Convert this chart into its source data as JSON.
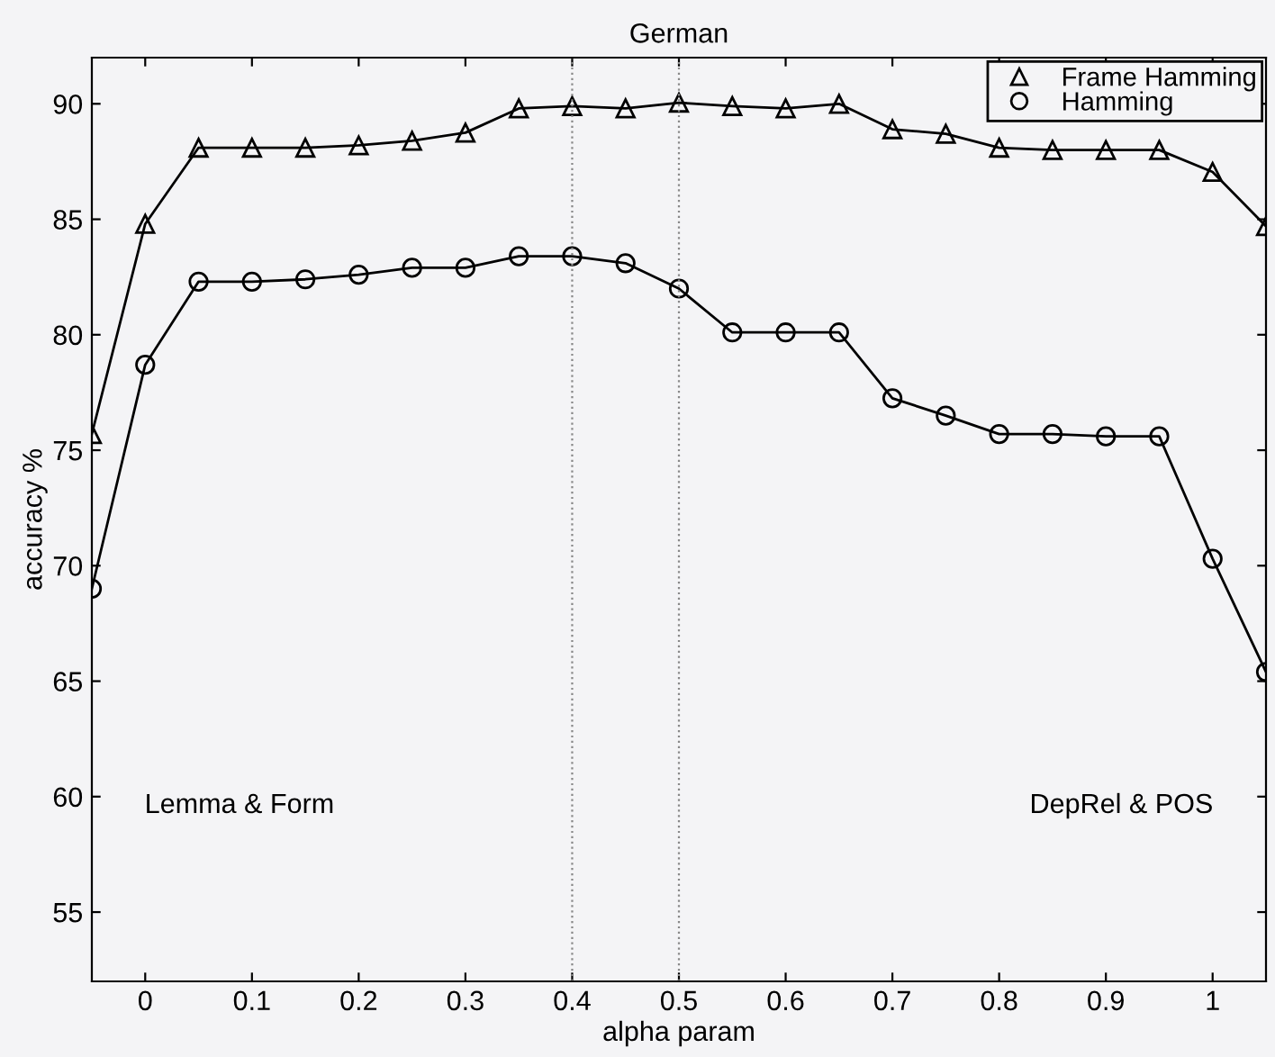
{
  "chart_data": {
    "type": "line",
    "title": "German",
    "xlabel": "alpha param",
    "ylabel": "accuracy %",
    "x": [
      -0.05,
      0,
      0.05,
      0.1,
      0.15,
      0.2,
      0.25,
      0.3,
      0.35,
      0.4,
      0.45,
      0.5,
      0.55,
      0.6,
      0.65,
      0.7,
      0.75,
      0.8,
      0.85,
      0.9,
      0.95,
      1.0,
      1.05
    ],
    "series": [
      {
        "name": "Frame Hamming",
        "color": "#000000",
        "marker": "triangle",
        "values": [
          75.7,
          84.8,
          88.1,
          88.1,
          88.1,
          88.2,
          88.4,
          88.75,
          89.8,
          89.9,
          89.8,
          90.05,
          89.9,
          89.8,
          90.0,
          88.9,
          88.7,
          88.1,
          88.0,
          88.0,
          88.0,
          87.05,
          84.7
        ]
      },
      {
        "name": "Hamming",
        "color": "#000000",
        "marker": "circle",
        "values": [
          69.0,
          78.7,
          82.3,
          82.3,
          82.4,
          82.6,
          82.9,
          82.9,
          83.4,
          83.4,
          83.1,
          82.0,
          80.1,
          80.1,
          80.1,
          77.25,
          76.5,
          75.7,
          75.7,
          75.6,
          75.6,
          70.3,
          65.4
        ]
      }
    ],
    "xlim": [
      -0.05,
      1.05
    ],
    "xticks": [
      0,
      0.1,
      0.2,
      0.3,
      0.4,
      0.5,
      0.6,
      0.7,
      0.8,
      0.9,
      1
    ],
    "ylim": [
      52,
      92
    ],
    "yticks": [
      55,
      60,
      65,
      70,
      75,
      80,
      85,
      90
    ],
    "ref_lines": [
      {
        "axis": "x",
        "value": 0.4,
        "label": null,
        "color": "#888888",
        "line_style": "dotted"
      },
      {
        "axis": "x",
        "value": 0.5,
        "label": null,
        "color": "#888888",
        "line_style": "dotted"
      }
    ],
    "annotations": [
      "Lemma & Form",
      "DepRel & POS"
    ],
    "legend": "top right",
    "grid": false,
    "line_style": "solid"
  }
}
